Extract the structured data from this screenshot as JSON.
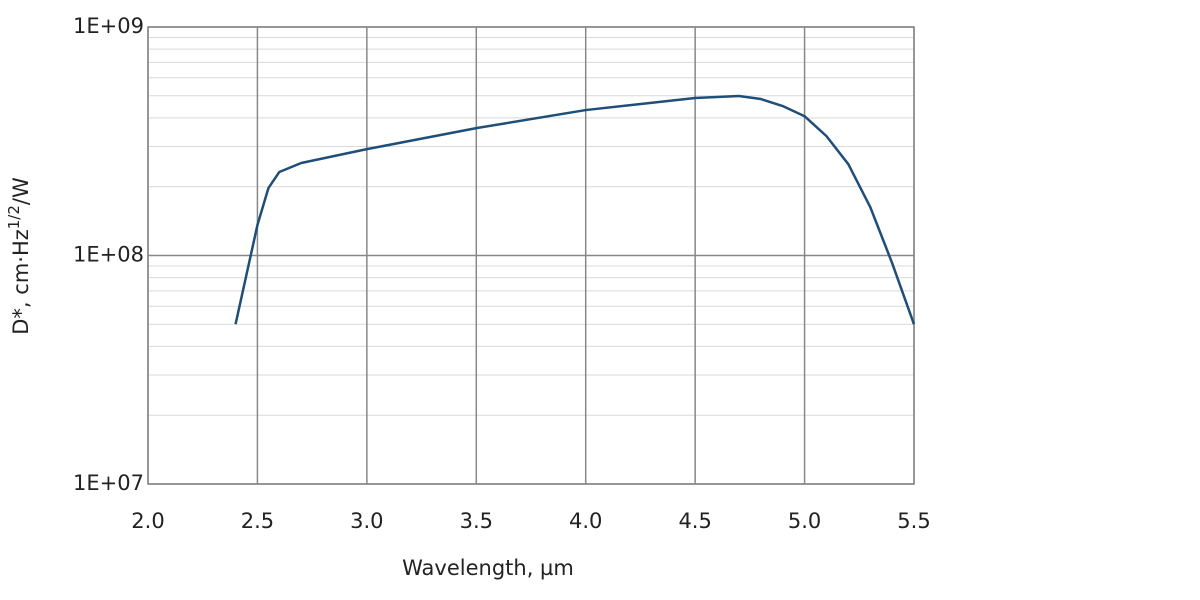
{
  "chart_data": {
    "type": "line",
    "x_label": "Wavelength, µm",
    "y_label_parts": [
      "D*, cm·Hz",
      "1/2",
      "/W"
    ],
    "log_y": true,
    "grid": true,
    "xlim": [
      2.0,
      5.5
    ],
    "xticks": [
      {
        "value": 2,
        "label": "2.0"
      },
      2.5,
      {
        "value": 3,
        "label": "3.0"
      },
      3.5,
      {
        "value": 4,
        "label": "4.0"
      },
      4.5,
      {
        "value": 5,
        "label": "5.0"
      },
      5.5
    ],
    "ylim": [
      10000000,
      1000000000
    ],
    "yticks": [
      {
        "value": 10000000,
        "label": "1E+07"
      },
      {
        "value": 100000000,
        "label": "1E+08"
      },
      {
        "value": 1000000000,
        "label": "1E+09"
      }
    ],
    "y_minor_ticks": [
      20000000,
      30000000,
      40000000,
      50000000,
      60000000,
      70000000,
      80000000,
      90000000,
      200000000,
      300000000,
      400000000,
      500000000,
      600000000,
      700000000,
      800000000,
      900000000
    ],
    "series": [
      {
        "color": "#1f4e79",
        "x": [
          2.4,
          2.5,
          2.55,
          2.6,
          2.7,
          3.0,
          3.5,
          4.0,
          4.5,
          4.7,
          4.8,
          4.9,
          5.0,
          5.1,
          5.2,
          5.3,
          5.4,
          5.5
        ],
        "values": [
          50000000,
          136000000,
          197000000,
          232000000,
          254000000,
          292000000,
          361000000,
          433000000,
          489000000,
          499000000,
          484000000,
          451000000,
          407000000,
          333000000,
          251000000,
          163000000,
          92700000,
          50000000
        ]
      }
    ]
  }
}
